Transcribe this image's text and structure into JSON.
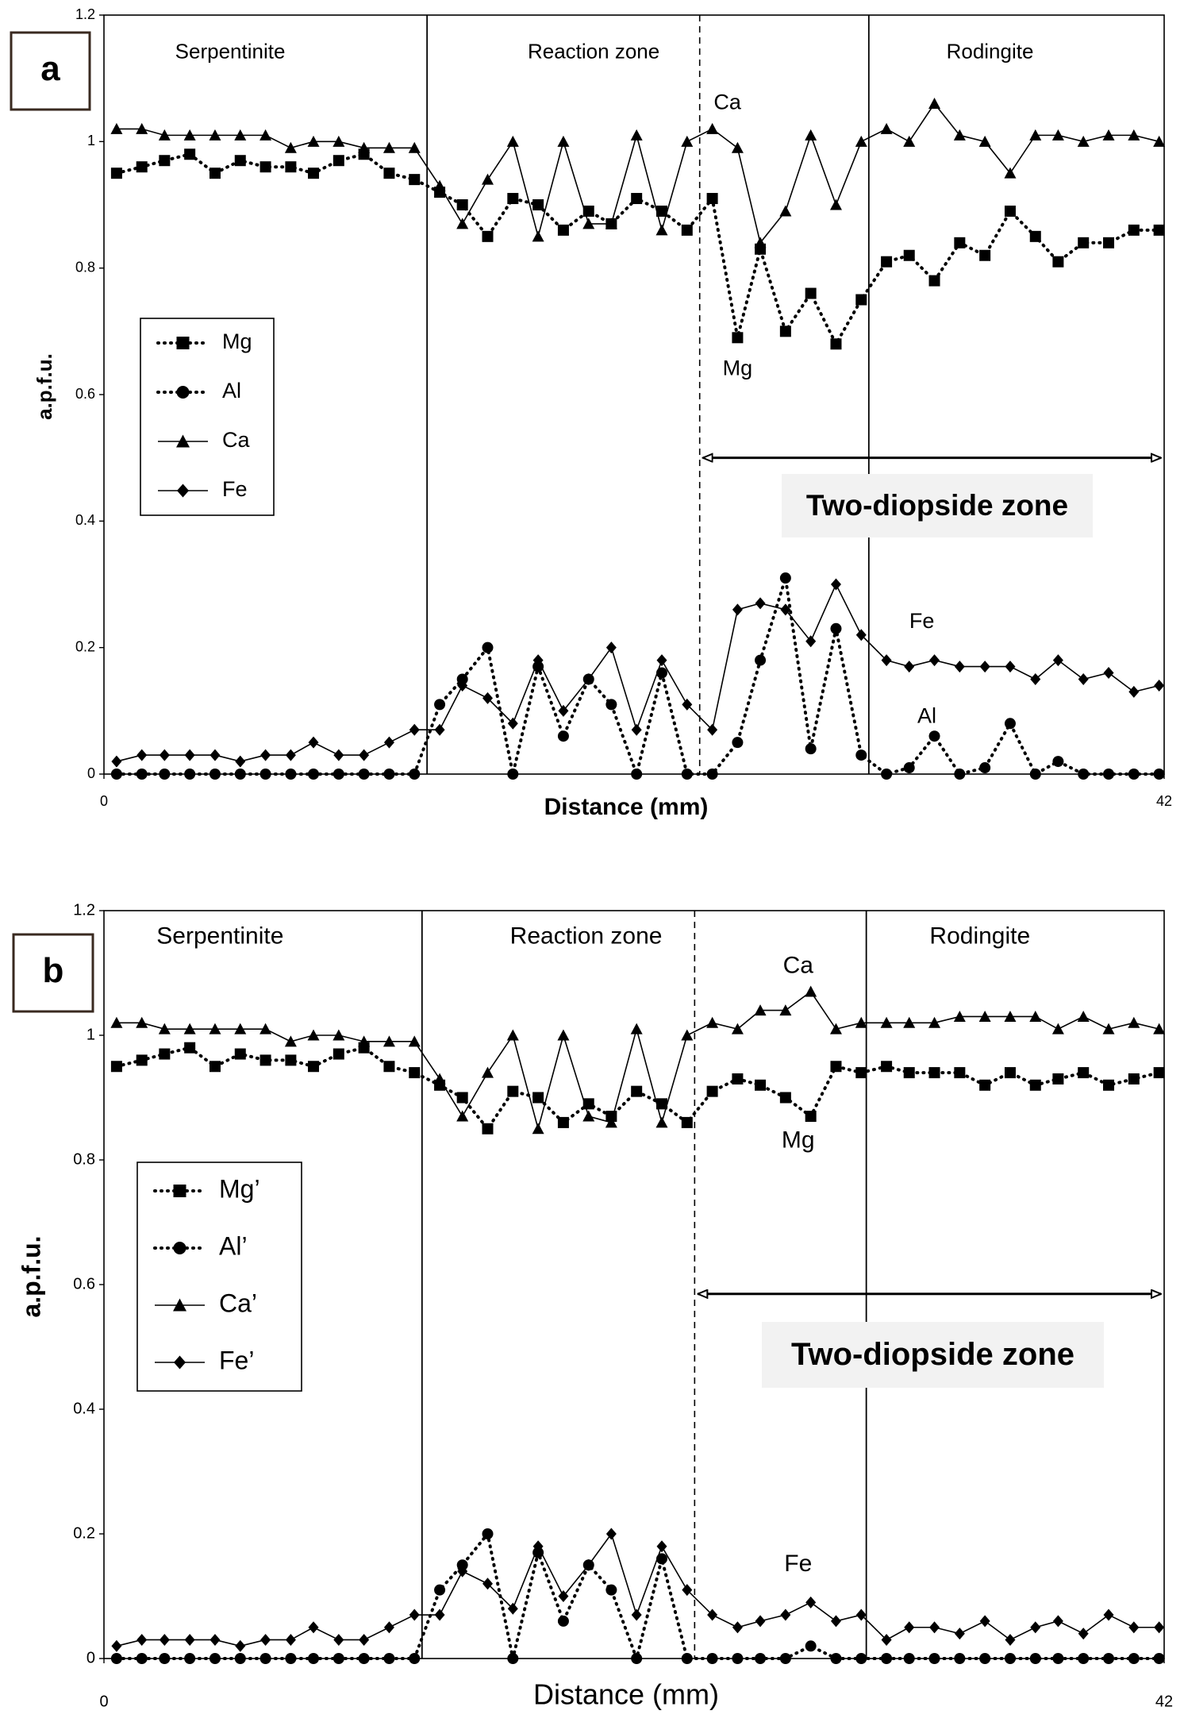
{
  "chart_data": [
    {
      "type": "line",
      "panel_label": "a",
      "x_label": "Distance (mm)",
      "y_label": "a.p.f.u.",
      "xlim": [
        0,
        42
      ],
      "xticks": [
        0,
        42
      ],
      "ylim": [
        0,
        1.2
      ],
      "yticks": [
        0,
        0.2,
        0.4,
        0.6,
        0.8,
        1,
        1.2
      ],
      "x": [
        0.5,
        1.5,
        2.4,
        3.4,
        4.4,
        5.4,
        6.4,
        7.4,
        8.3,
        9.3,
        10.3,
        11.3,
        12.3,
        13.3,
        14.2,
        15.2,
        16.2,
        17.2,
        18.2,
        19.2,
        20.1,
        21.1,
        22.1,
        23.1,
        24.1,
        25.1,
        26.0,
        27.0,
        28.0,
        29.0,
        30.0,
        31.0,
        31.9,
        32.9,
        33.9,
        34.9,
        35.9,
        36.9,
        37.8,
        38.8,
        39.8,
        40.8,
        41.8
      ],
      "series": [
        {
          "name": "Mg",
          "color": "#000000",
          "line_style": "dotted",
          "marker": "square",
          "values": [
            0.95,
            0.96,
            0.97,
            0.98,
            0.95,
            0.97,
            0.96,
            0.96,
            0.95,
            0.97,
            0.98,
            0.95,
            0.94,
            0.92,
            0.9,
            0.85,
            0.91,
            0.9,
            0.86,
            0.89,
            0.87,
            0.91,
            0.89,
            0.86,
            0.91,
            0.69,
            0.83,
            0.7,
            0.76,
            0.68,
            0.75,
            0.81,
            0.82,
            0.78,
            0.84,
            0.82,
            0.89,
            0.85,
            0.81,
            0.84,
            0.84,
            0.86,
            0.86
          ]
        },
        {
          "name": "Al",
          "color": "#000000",
          "line_style": "dotted",
          "marker": "circle",
          "values": [
            0,
            0,
            0,
            0,
            0,
            0,
            0,
            0,
            0,
            0,
            0,
            0,
            0,
            0.11,
            0.15,
            0.2,
            0,
            0.17,
            0.06,
            0.15,
            0.11,
            0,
            0.16,
            0,
            0,
            0.05,
            0.18,
            0.31,
            0.04,
            0.23,
            0.03,
            0,
            0.01,
            0.06,
            0,
            0.01,
            0.08,
            0,
            0.02,
            0,
            0,
            0,
            0
          ]
        },
        {
          "name": "Ca",
          "color": "#000000",
          "line_style": "solid",
          "marker": "triangle",
          "values": [
            1.02,
            1.02,
            1.01,
            1.01,
            1.01,
            1.01,
            1.01,
            0.99,
            1.0,
            1.0,
            0.99,
            0.99,
            0.99,
            0.93,
            0.87,
            0.94,
            1.0,
            0.85,
            1.0,
            0.87,
            0.87,
            1.01,
            0.86,
            1.0,
            1.02,
            0.99,
            0.84,
            0.89,
            1.01,
            0.9,
            1.0,
            1.02,
            1.0,
            1.06,
            1.01,
            1.0,
            0.95,
            1.01,
            1.01,
            1.0,
            1.01,
            1.01,
            1.0
          ]
        },
        {
          "name": "Fe",
          "color": "#000000",
          "line_style": "solid",
          "marker": "diamond",
          "values": [
            0.02,
            0.03,
            0.03,
            0.03,
            0.03,
            0.02,
            0.03,
            0.03,
            0.05,
            0.03,
            0.03,
            0.05,
            0.07,
            0.07,
            0.14,
            0.12,
            0.08,
            0.18,
            0.1,
            0.15,
            0.2,
            0.07,
            0.18,
            0.11,
            0.07,
            0.26,
            0.27,
            0.26,
            0.21,
            0.3,
            0.22,
            0.18,
            0.17,
            0.18,
            0.17,
            0.17,
            0.17,
            0.15,
            0.18,
            0.15,
            0.16,
            0.13,
            0.14
          ]
        }
      ],
      "boundaries": [
        {
          "x": 12.8,
          "style": "solid"
        },
        {
          "x": 23.6,
          "style": "dashed"
        },
        {
          "x": 30.3,
          "style": "solid"
        }
      ],
      "zones": [
        "Serpentinite",
        "Reaction zone",
        "Rodingite"
      ],
      "annotations": [
        "Ca",
        "Mg",
        "Fe",
        "Al"
      ],
      "zone_note": "Two-diopside zone"
    },
    {
      "type": "line",
      "panel_label": "b",
      "x_label": "Distance (mm)",
      "y_label": "a.p.f.u.",
      "xlim": [
        0,
        42
      ],
      "xticks": [
        0,
        42
      ],
      "ylim": [
        0,
        1.2
      ],
      "yticks": [
        0,
        0.2,
        0.4,
        0.6,
        0.8,
        1,
        1.2
      ],
      "x": [
        0.5,
        1.5,
        2.4,
        3.4,
        4.4,
        5.4,
        6.4,
        7.4,
        8.3,
        9.3,
        10.3,
        11.3,
        12.3,
        13.3,
        14.2,
        15.2,
        16.2,
        17.2,
        18.2,
        19.2,
        20.1,
        21.1,
        22.1,
        23.1,
        24.1,
        25.1,
        26.0,
        27.0,
        28.0,
        29.0,
        30.0,
        31.0,
        31.9,
        32.9,
        33.9,
        34.9,
        35.9,
        36.9,
        37.8,
        38.8,
        39.8,
        40.8,
        41.8
      ],
      "series": [
        {
          "name": "Mg’",
          "color": "#000000",
          "line_style": "dotted",
          "marker": "square",
          "values": [
            0.95,
            0.96,
            0.97,
            0.98,
            0.95,
            0.97,
            0.96,
            0.96,
            0.95,
            0.97,
            0.98,
            0.95,
            0.94,
            0.92,
            0.9,
            0.85,
            0.91,
            0.9,
            0.86,
            0.89,
            0.87,
            0.91,
            0.89,
            0.86,
            0.91,
            0.93,
            0.92,
            0.9,
            0.87,
            0.95,
            0.94,
            0.95,
            0.94,
            0.94,
            0.94,
            0.92,
            0.94,
            0.92,
            0.93,
            0.94,
            0.92,
            0.93,
            0.94
          ]
        },
        {
          "name": "Al’",
          "color": "#000000",
          "line_style": "dotted",
          "marker": "circle",
          "values": [
            0,
            0,
            0,
            0,
            0,
            0,
            0,
            0,
            0,
            0,
            0,
            0,
            0,
            0.11,
            0.15,
            0.2,
            0,
            0.17,
            0.06,
            0.15,
            0.11,
            0,
            0.16,
            0,
            0,
            0,
            0,
            0,
            0.02,
            0,
            0,
            0,
            0,
            0,
            0,
            0,
            0,
            0,
            0,
            0,
            0,
            0,
            0
          ]
        },
        {
          "name": "Ca’",
          "color": "#000000",
          "line_style": "solid",
          "marker": "triangle",
          "values": [
            1.02,
            1.02,
            1.01,
            1.01,
            1.01,
            1.01,
            1.01,
            0.99,
            1.0,
            1.0,
            0.99,
            0.99,
            0.99,
            0.93,
            0.87,
            0.94,
            1.0,
            0.85,
            1.0,
            0.87,
            0.86,
            1.01,
            0.86,
            1.0,
            1.02,
            1.01,
            1.04,
            1.04,
            1.07,
            1.01,
            1.02,
            1.02,
            1.02,
            1.02,
            1.03,
            1.03,
            1.03,
            1.03,
            1.01,
            1.03,
            1.01,
            1.02,
            1.01
          ]
        },
        {
          "name": "Fe’",
          "color": "#000000",
          "line_style": "solid",
          "marker": "diamond",
          "values": [
            0.02,
            0.03,
            0.03,
            0.03,
            0.03,
            0.02,
            0.03,
            0.03,
            0.05,
            0.03,
            0.03,
            0.05,
            0.07,
            0.07,
            0.14,
            0.12,
            0.08,
            0.18,
            0.1,
            0.15,
            0.2,
            0.07,
            0.18,
            0.11,
            0.07,
            0.05,
            0.06,
            0.07,
            0.09,
            0.06,
            0.07,
            0.03,
            0.05,
            0.05,
            0.04,
            0.06,
            0.03,
            0.05,
            0.06,
            0.04,
            0.07,
            0.05,
            0.05
          ]
        }
      ],
      "boundaries": [
        {
          "x": 12.6,
          "style": "solid"
        },
        {
          "x": 23.4,
          "style": "dashed"
        },
        {
          "x": 30.2,
          "style": "solid"
        }
      ],
      "zones": [
        "Serpentinite",
        "Reaction zone",
        "Rodingite"
      ],
      "annotations": [
        "Ca",
        "Mg",
        "Fe"
      ],
      "zone_note": "Two-diopside zone"
    }
  ]
}
